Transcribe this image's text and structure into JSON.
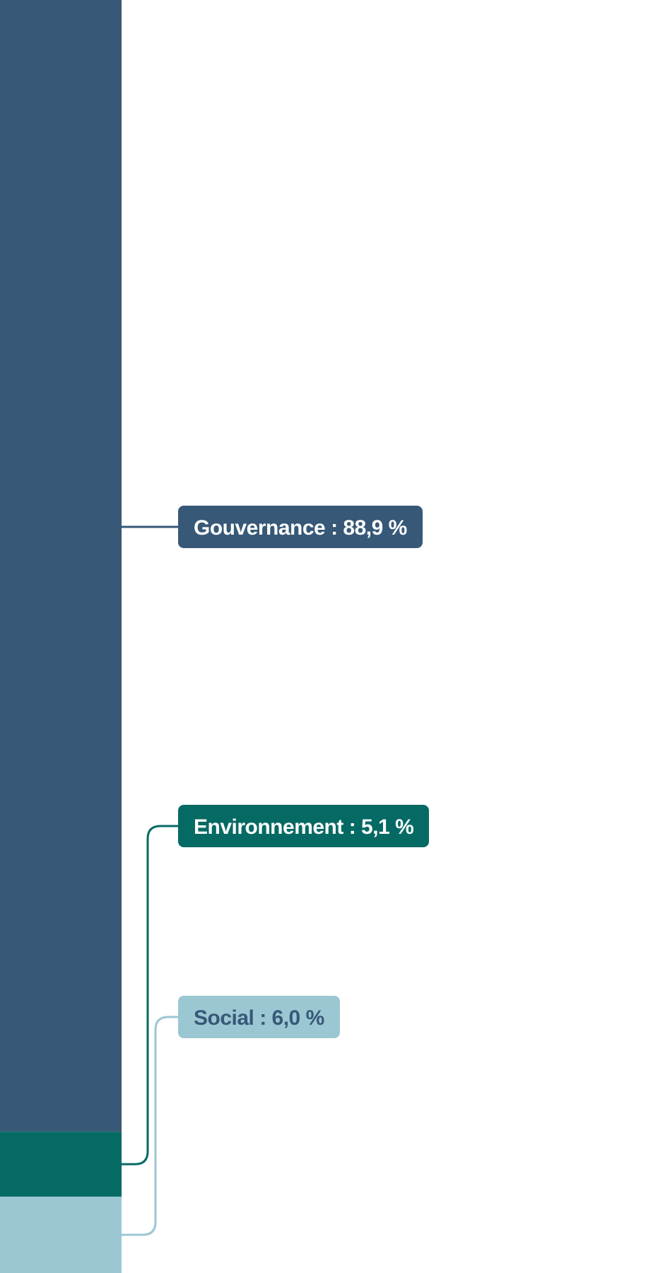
{
  "chart_data": {
    "type": "bar",
    "stacked": true,
    "orientation": "vertical",
    "title": "",
    "ylim": [
      0,
      100
    ],
    "series": [
      {
        "name": "Gouvernance",
        "value": 88.9,
        "label": "Gouvernance : 88,9 %",
        "color": "#375877",
        "text_color": "#ffffff"
      },
      {
        "name": "Environnement",
        "value": 5.1,
        "label": "Environnement : 5,1 %",
        "color": "#066a64",
        "text_color": "#ffffff"
      },
      {
        "name": "Social",
        "value": 6.0,
        "label": "Social : 6,0 %",
        "color": "#9bc7d3",
        "text_color": "#375877"
      }
    ]
  }
}
